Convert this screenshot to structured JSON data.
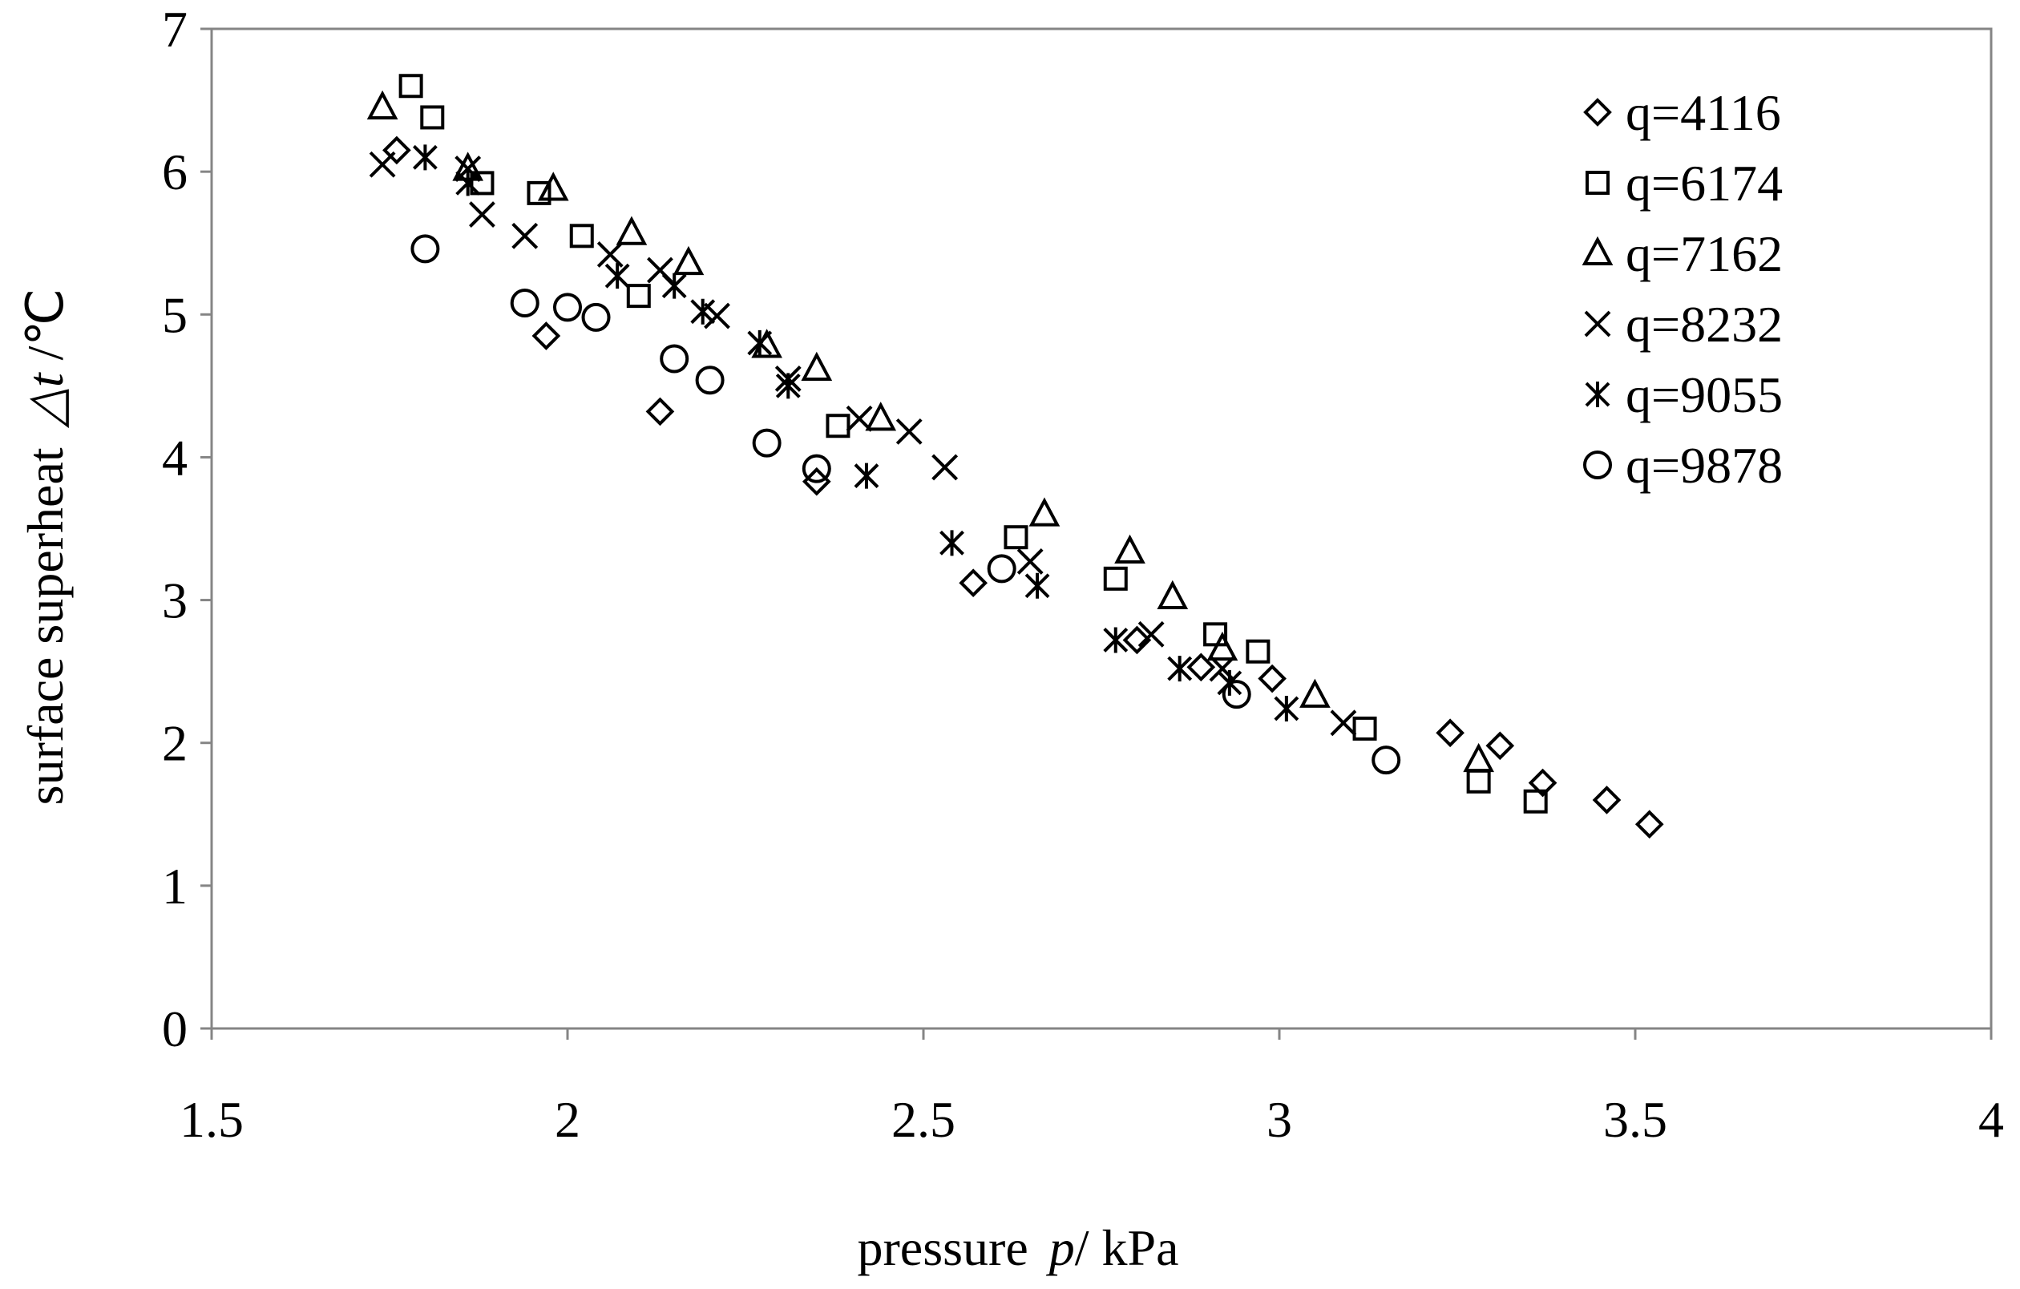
{
  "chart_data": {
    "type": "scatter",
    "title": "",
    "xlabel_prefix": "pressure",
    "xlabel_var": "p",
    "xlabel_unit": "/ kPa",
    "ylabel_prefix": "surface superheat",
    "ylabel_var": "△t",
    "ylabel_unit": " /℃",
    "xlim": [
      1.5,
      4
    ],
    "ylim": [
      0,
      7
    ],
    "x_ticks": [
      1.5,
      2,
      2.5,
      3,
      3.5,
      4
    ],
    "x_tick_labels": [
      "1.5",
      "2",
      "2.5",
      "3",
      "3.5",
      "4"
    ],
    "y_ticks": [
      0,
      1,
      2,
      3,
      4,
      5,
      6,
      7
    ],
    "y_tick_labels": [
      "0",
      "1",
      "2",
      "3",
      "4",
      "5",
      "6",
      "7"
    ],
    "grid": false,
    "legend_position": "top-right",
    "series": [
      {
        "name": "q=4116",
        "marker": "diamond",
        "x": [
          1.76,
          1.97,
          2.13,
          2.35,
          2.57,
          2.8,
          2.89,
          2.99,
          3.24,
          3.31,
          3.37,
          3.46,
          3.52
        ],
        "y": [
          6.15,
          4.85,
          4.32,
          3.83,
          3.12,
          2.72,
          2.53,
          2.45,
          2.07,
          1.98,
          1.72,
          1.6,
          1.43
        ]
      },
      {
        "name": "q=6174",
        "marker": "square",
        "x": [
          1.78,
          1.81,
          1.88,
          1.96,
          2.02,
          2.1,
          2.38,
          2.63,
          2.77,
          2.91,
          2.97,
          3.12,
          3.28,
          3.36
        ],
        "y": [
          6.6,
          6.38,
          5.92,
          5.85,
          5.55,
          5.13,
          4.22,
          3.44,
          3.15,
          2.76,
          2.64,
          2.1,
          1.73,
          1.59
        ]
      },
      {
        "name": "q=7162",
        "marker": "triangle",
        "x": [
          1.74,
          1.86,
          1.98,
          2.09,
          2.17,
          2.28,
          2.35,
          2.44,
          2.67,
          2.79,
          2.85,
          2.92,
          3.05,
          3.28
        ],
        "y": [
          6.45,
          6.02,
          5.88,
          5.57,
          5.36,
          4.78,
          4.62,
          4.27,
          3.6,
          3.34,
          3.02,
          2.66,
          2.33,
          1.88
        ]
      },
      {
        "name": "q=8232",
        "marker": "x",
        "x": [
          1.74,
          1.86,
          1.88,
          1.94,
          2.06,
          2.13,
          2.21,
          2.31,
          2.41,
          2.48,
          2.53,
          2.65,
          2.82,
          2.92,
          3.09
        ],
        "y": [
          6.05,
          6.02,
          5.7,
          5.55,
          5.42,
          5.31,
          4.99,
          4.55,
          4.27,
          4.18,
          3.93,
          3.27,
          2.76,
          2.52,
          2.14
        ]
      },
      {
        "name": "q=9055",
        "marker": "star",
        "x": [
          1.8,
          1.86,
          2.07,
          2.15,
          2.19,
          2.27,
          2.31,
          2.42,
          2.54,
          2.66,
          2.77,
          2.86,
          2.93,
          3.01
        ],
        "y": [
          6.1,
          5.92,
          5.27,
          5.2,
          5.02,
          4.8,
          4.5,
          3.87,
          3.4,
          3.1,
          2.72,
          2.52,
          2.42,
          2.24
        ]
      },
      {
        "name": "q=9878",
        "marker": "circle",
        "x": [
          1.8,
          1.94,
          2.0,
          2.04,
          2.15,
          2.2,
          2.28,
          2.35,
          2.61,
          2.94,
          3.15
        ],
        "y": [
          5.46,
          5.08,
          5.05,
          4.98,
          4.69,
          4.54,
          4.1,
          3.92,
          3.22,
          2.34,
          1.88
        ]
      }
    ]
  }
}
